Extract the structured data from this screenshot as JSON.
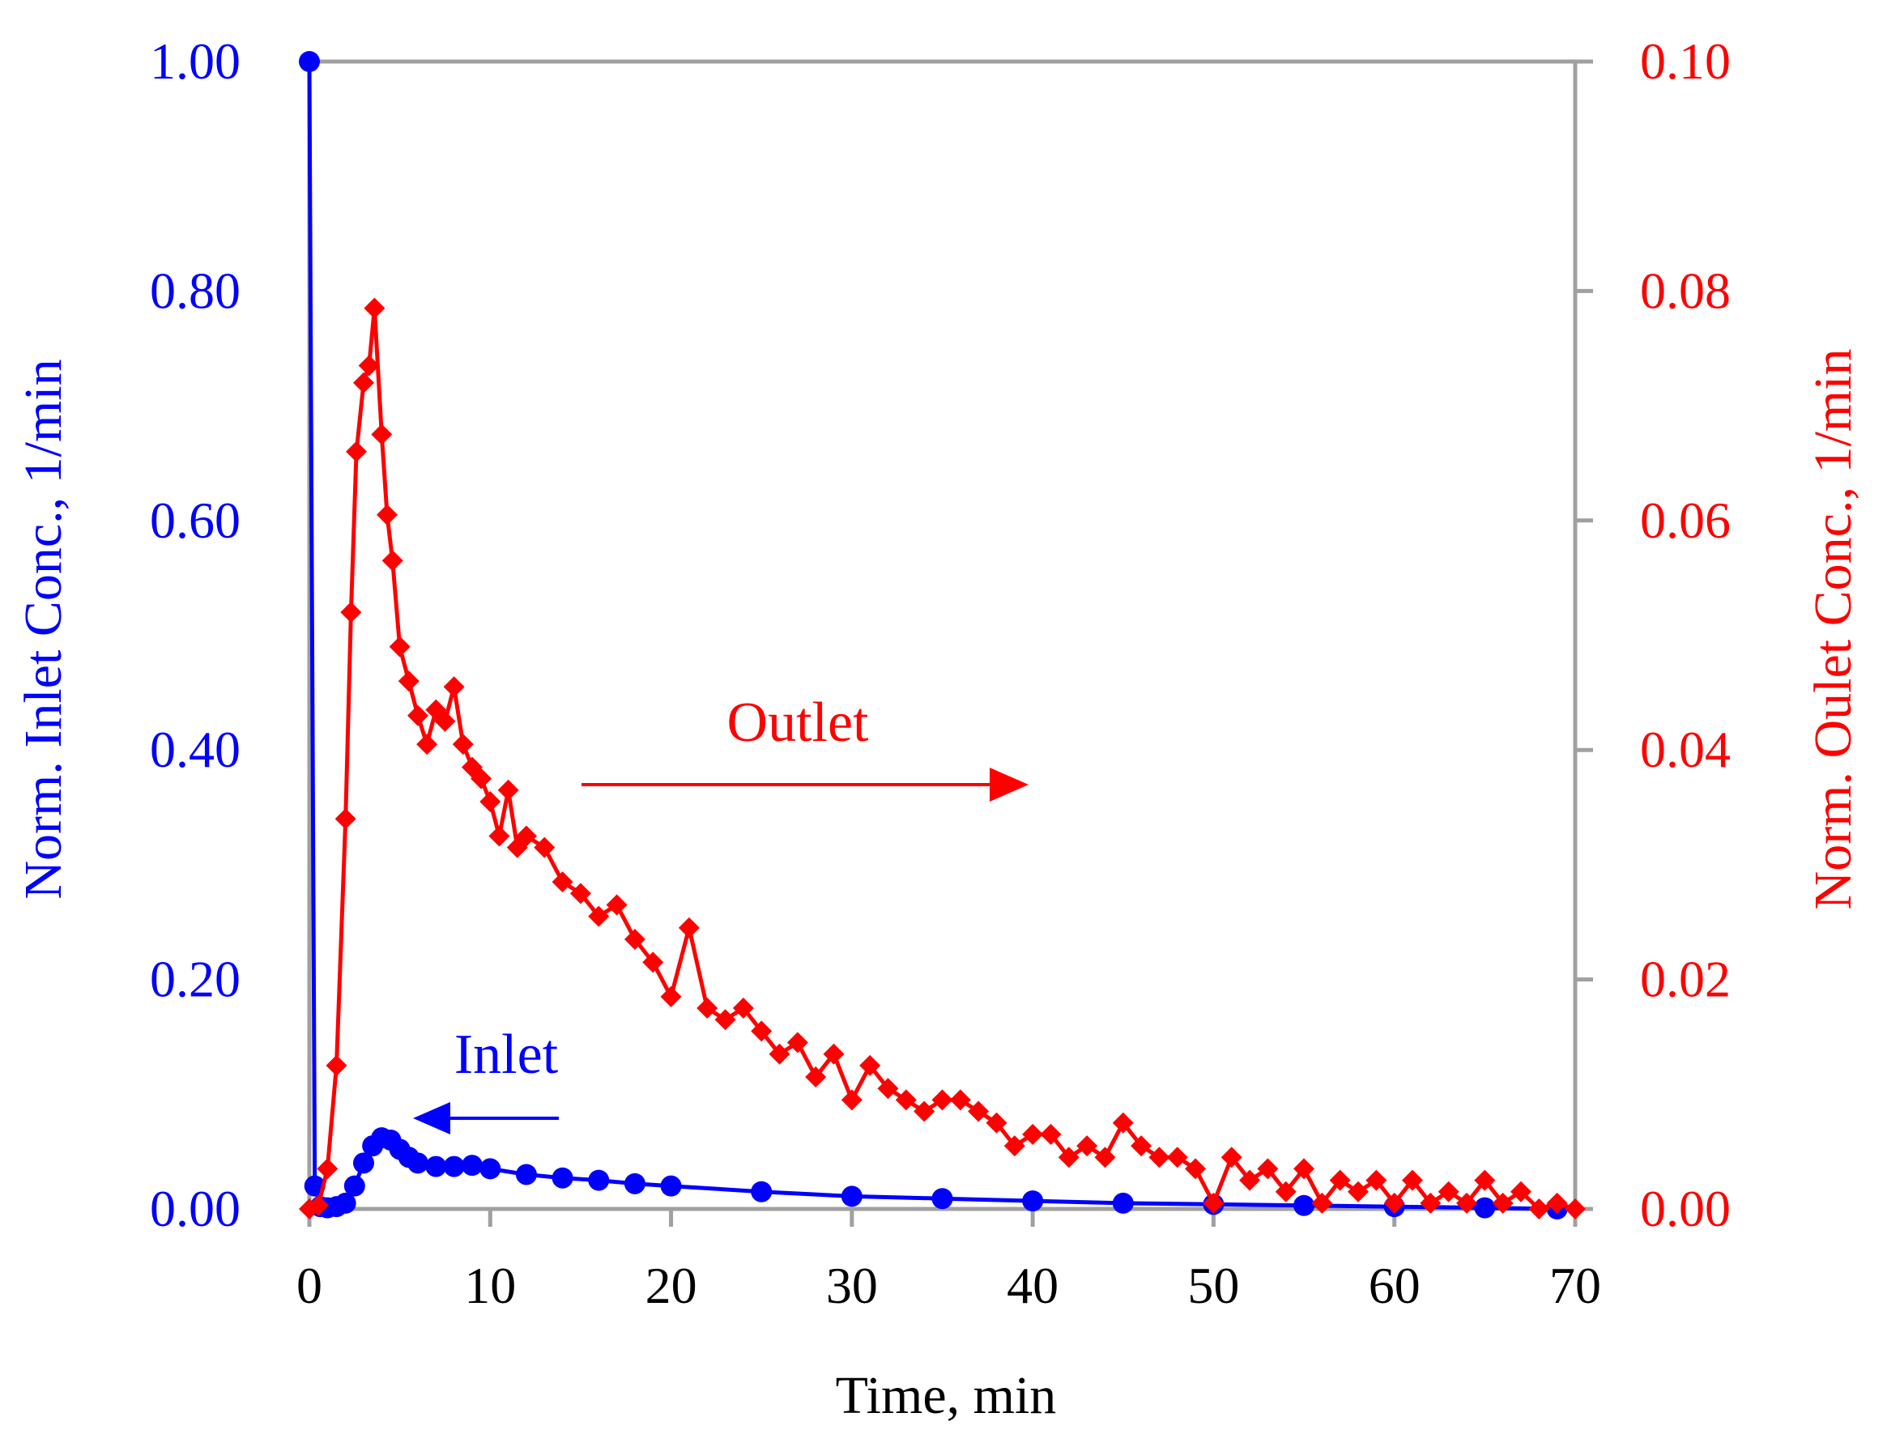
{
  "chart_data": {
    "type": "line",
    "title": "",
    "xlabel": "Time, min",
    "ylabel_left": "Norm. Inlet Conc., 1/min",
    "ylabel_right": "Norm. Oulet Conc., 1/min",
    "xlim": [
      0,
      70
    ],
    "ylim_left": [
      0,
      1.0
    ],
    "ylim_right": [
      0,
      0.1
    ],
    "x_ticks": [
      "0",
      "10",
      "20",
      "30",
      "40",
      "50",
      "60",
      "70"
    ],
    "y_left_ticks": [
      "0.00",
      "0.20",
      "0.40",
      "0.60",
      "0.80",
      "1.00"
    ],
    "y_right_ticks": [
      "0.00",
      "0.02",
      "0.04",
      "0.06",
      "0.08",
      "0.10"
    ],
    "grid": false,
    "colors": {
      "inlet": "#0000ff",
      "outlet": "#ff0000",
      "frame": "#a0a0a0",
      "text": "#000000"
    },
    "annotations": [
      {
        "text": "Outlet",
        "arrow": "right",
        "series": "Outlet"
      },
      {
        "text": "Inlet",
        "arrow": "left",
        "series": "Inlet"
      }
    ],
    "series": [
      {
        "name": "Inlet",
        "axis": "left",
        "marker": "circle",
        "x": [
          0,
          0.3,
          0.6,
          1,
          1.5,
          2,
          2.5,
          3,
          3.5,
          4,
          4.5,
          5,
          5.5,
          6,
          7,
          8,
          9,
          10,
          12,
          14,
          16,
          18,
          20,
          25,
          30,
          35,
          40,
          45,
          50,
          55,
          60,
          65,
          69
        ],
        "y": [
          1.0,
          0.02,
          0.002,
          0.001,
          0.002,
          0.005,
          0.02,
          0.04,
          0.055,
          0.062,
          0.06,
          0.052,
          0.045,
          0.04,
          0.037,
          0.037,
          0.038,
          0.035,
          0.03,
          0.027,
          0.025,
          0.022,
          0.02,
          0.015,
          0.011,
          0.009,
          0.007,
          0.005,
          0.004,
          0.003,
          0.002,
          0.001,
          0.0
        ]
      },
      {
        "name": "Outlet",
        "axis": "right",
        "marker": "diamond",
        "x": [
          0,
          0.5,
          1,
          1.5,
          2,
          2.3,
          2.6,
          3,
          3.3,
          3.6,
          4,
          4.3,
          4.6,
          5,
          5.5,
          6,
          6.5,
          7,
          7.5,
          8,
          8.5,
          9,
          9.5,
          10,
          10.5,
          11,
          11.5,
          12,
          13,
          14,
          15,
          16,
          17,
          18,
          19,
          20,
          21,
          22,
          23,
          24,
          25,
          26,
          27,
          28,
          29,
          30,
          31,
          32,
          33,
          34,
          35,
          36,
          37,
          38,
          39,
          40,
          41,
          42,
          43,
          44,
          45,
          46,
          47,
          48,
          49,
          50,
          51,
          52,
          53,
          54,
          55,
          56,
          57,
          58,
          59,
          60,
          61,
          62,
          63,
          64,
          65,
          66,
          67,
          68,
          69,
          70
        ],
        "y": [
          0.0,
          0.0003,
          0.0035,
          0.0125,
          0.034,
          0.052,
          0.066,
          0.072,
          0.0735,
          0.0785,
          0.0675,
          0.0605,
          0.0565,
          0.049,
          0.046,
          0.043,
          0.0405,
          0.0435,
          0.0425,
          0.0455,
          0.0405,
          0.0385,
          0.0375,
          0.0355,
          0.0325,
          0.0365,
          0.0315,
          0.0325,
          0.0315,
          0.0285,
          0.0275,
          0.0255,
          0.0265,
          0.0235,
          0.0215,
          0.0185,
          0.0245,
          0.0175,
          0.0165,
          0.0175,
          0.0155,
          0.0135,
          0.0145,
          0.0115,
          0.0135,
          0.0095,
          0.0125,
          0.0105,
          0.0095,
          0.0085,
          0.0095,
          0.0095,
          0.0085,
          0.0075,
          0.0055,
          0.0065,
          0.0065,
          0.0045,
          0.0055,
          0.0045,
          0.0075,
          0.0055,
          0.0045,
          0.0045,
          0.0035,
          0.0005,
          0.0045,
          0.0025,
          0.0035,
          0.0015,
          0.0035,
          0.0005,
          0.0025,
          0.0015,
          0.0025,
          0.0005,
          0.0025,
          0.0005,
          0.0015,
          0.0005,
          0.0025,
          0.0005,
          0.0015,
          0.0,
          0.0005,
          0.0
        ]
      }
    ]
  }
}
